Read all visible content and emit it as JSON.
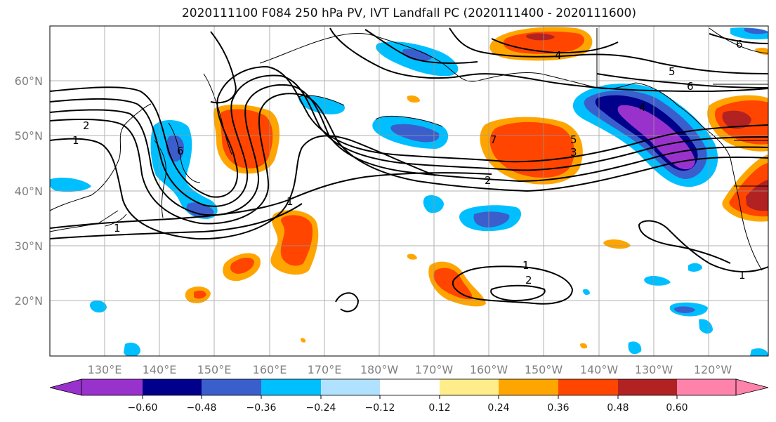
{
  "title": "2020111100 F084 250 hPa PV, IVT Landfall PC (2020111400 - 2020111600)",
  "lat_labels": [
    "60°N",
    "50°N",
    "40°N",
    "30°N",
    "20°N"
  ],
  "lat_values": [
    60,
    50,
    40,
    30,
    20
  ],
  "lon_labels": [
    "130°E",
    "140°E",
    "150°E",
    "160°E",
    "170°E",
    "180°W",
    "170°W",
    "160°W",
    "150°W",
    "140°W",
    "130°W",
    "120°W"
  ],
  "lon_values": [
    130,
    140,
    150,
    160,
    170,
    180,
    190,
    200,
    210,
    220,
    230,
    240
  ],
  "map_extent": {
    "lon_min": 120,
    "lon_max": 251,
    "lat_min": 10,
    "lat_max": 70
  },
  "colorbar": {
    "colors": [
      "#9932CC",
      "#00008B",
      "#3A5FCD",
      "#00BFFF",
      "#B0E2FF",
      "#FFFFFF",
      "#FFEC8B",
      "#FFA500",
      "#FF4500",
      "#B22222",
      "#FF82AB"
    ],
    "tick_labels": [
      "−0.60",
      "−0.48",
      "−0.36",
      "−0.24",
      "−0.12",
      "0.12",
      "0.24",
      "0.36",
      "0.48",
      "0.60"
    ]
  },
  "contour_labels": [
    "2",
    "1",
    "6",
    "1",
    "1",
    "2",
    "7",
    "5",
    "3",
    "4",
    "5",
    "6",
    "1",
    "2",
    "1",
    "4",
    "6"
  ]
}
